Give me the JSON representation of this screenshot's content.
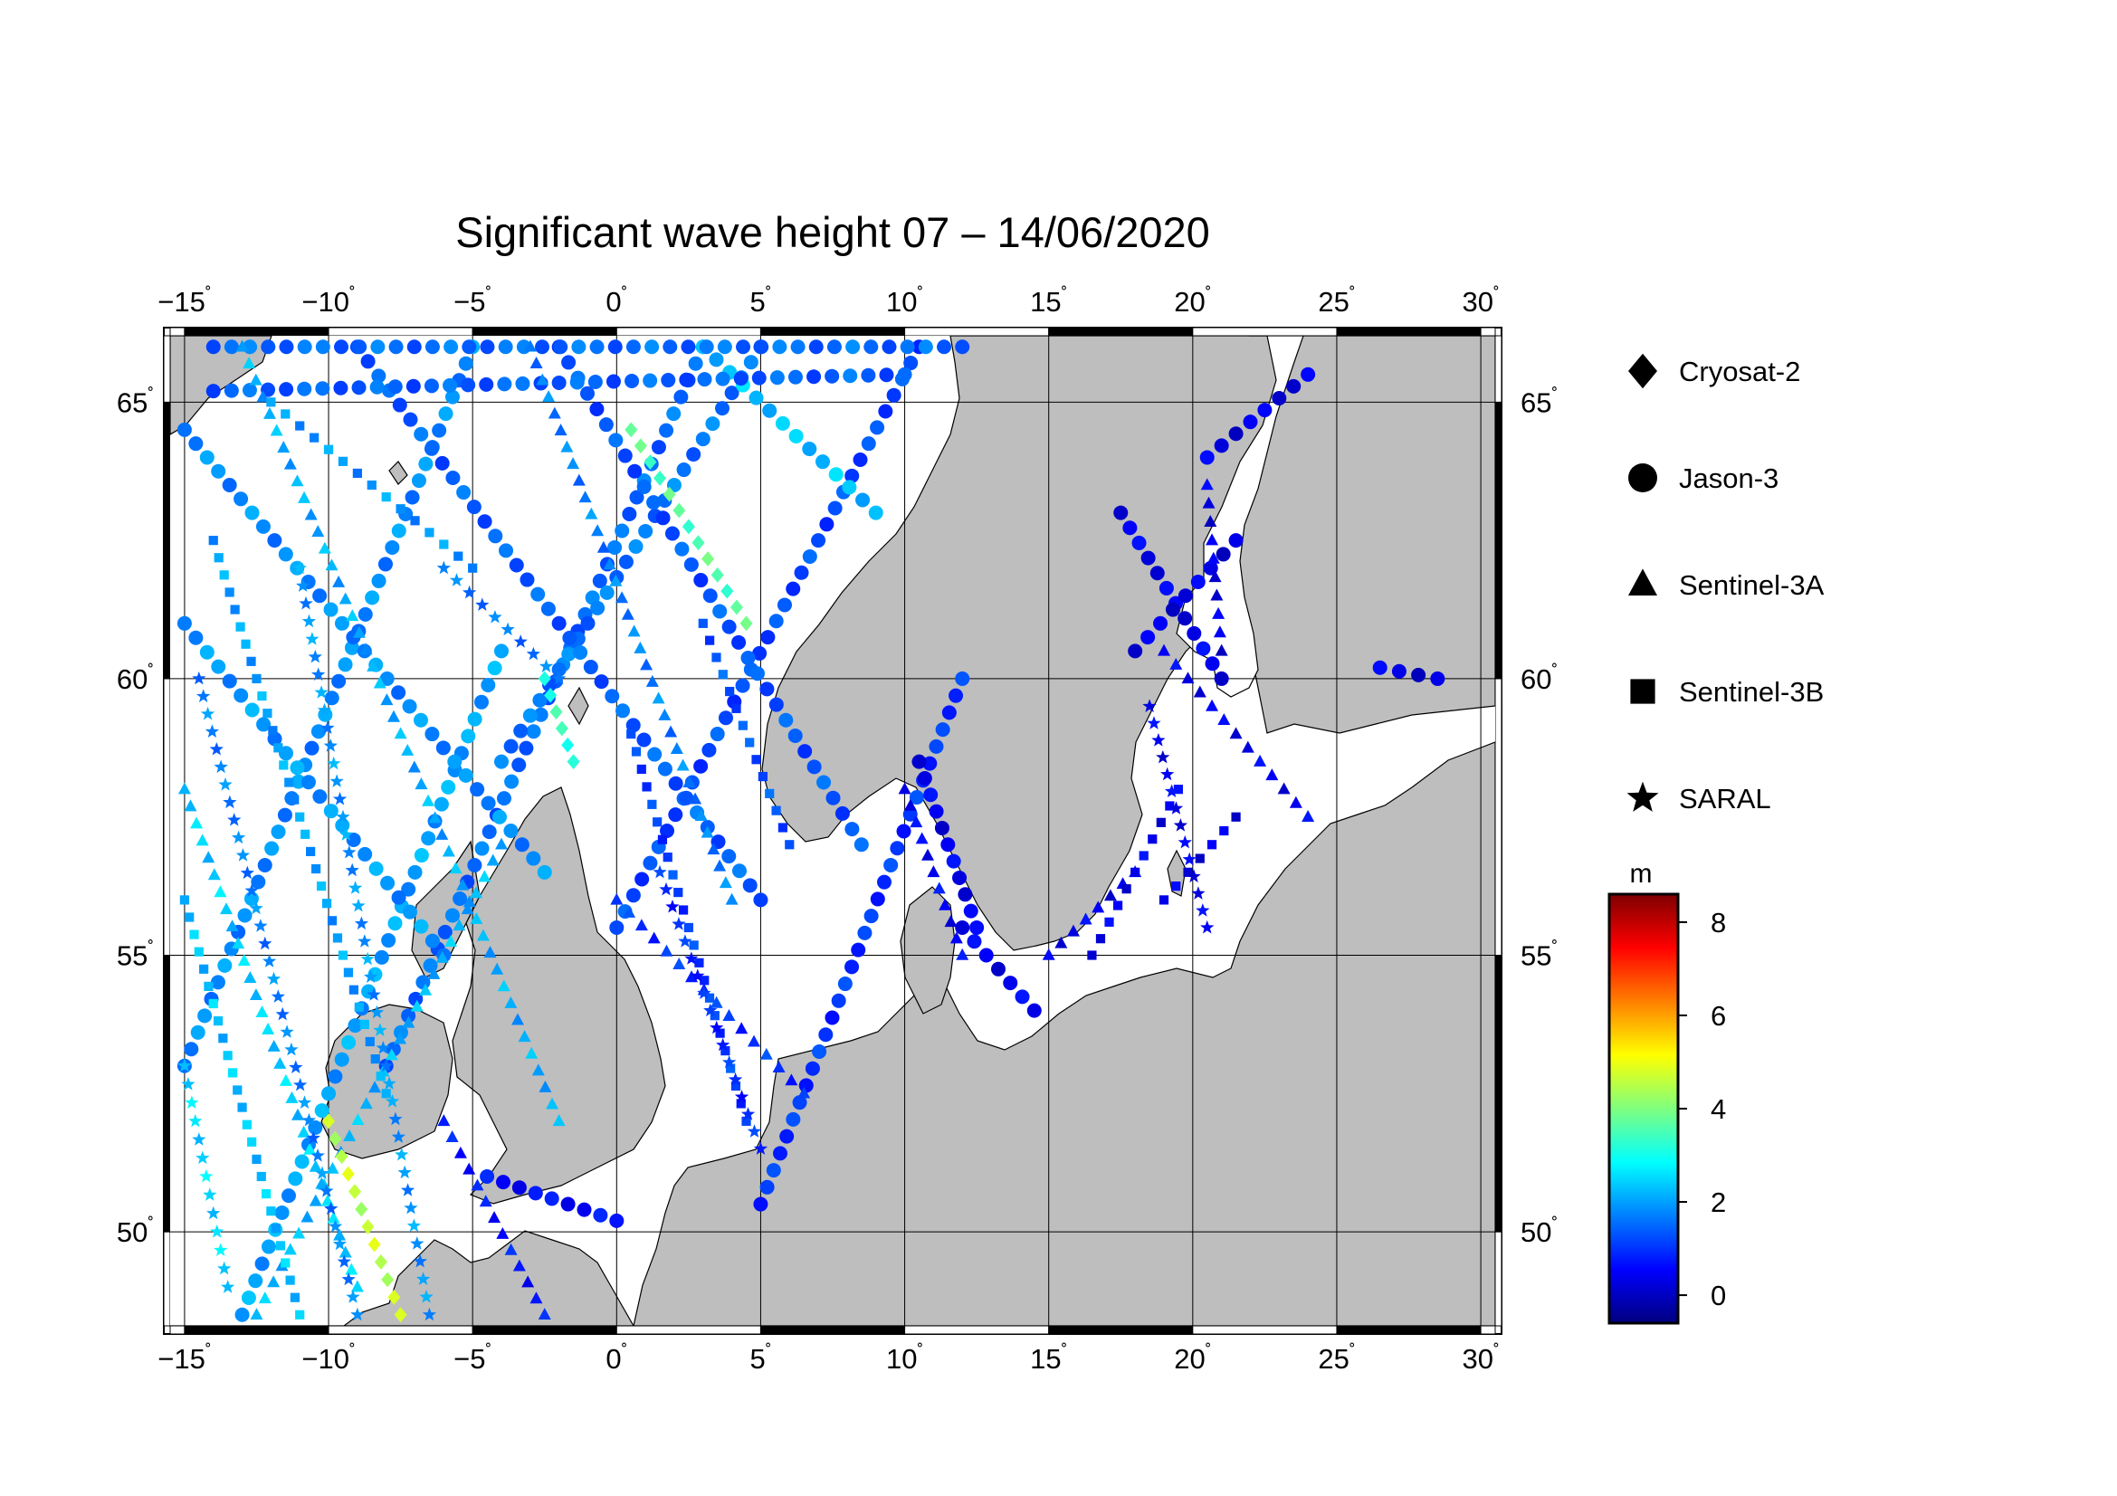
{
  "title": "Significant wave height 07 – 14/06/2020",
  "map": {
    "lon_range": [
      -15.5,
      30.5
    ],
    "lat_range": [
      48.3,
      66.2
    ],
    "gridlines": true,
    "water_color": "#ffffff",
    "land_color": "#bebebe",
    "lon_ticks": [
      {
        "value": -15,
        "label": "−15"
      },
      {
        "value": -10,
        "label": "−10"
      },
      {
        "value": -5,
        "label": "−5"
      },
      {
        "value": 0,
        "label": "0"
      },
      {
        "value": 5,
        "label": "5"
      },
      {
        "value": 10,
        "label": "10"
      },
      {
        "value": 15,
        "label": "15"
      },
      {
        "value": 20,
        "label": "20"
      },
      {
        "value": 25,
        "label": "25"
      },
      {
        "value": 30,
        "label": "30"
      }
    ],
    "lat_ticks": [
      {
        "value": 50,
        "label": "50"
      },
      {
        "value": 55,
        "label": "55"
      },
      {
        "value": 60,
        "label": "60"
      },
      {
        "value": 65,
        "label": "65"
      }
    ],
    "degree_symbol": "˚"
  },
  "legend": {
    "items": [
      {
        "label": "Cryosat-2",
        "symbol": "diamond"
      },
      {
        "label": "Jason-3",
        "symbol": "circle"
      },
      {
        "label": "Sentinel-3A",
        "symbol": "triangle"
      },
      {
        "label": "Sentinel-3B",
        "symbol": "square"
      },
      {
        "label": "SARAL",
        "symbol": "star"
      }
    ]
  },
  "colorbar": {
    "unit": "m",
    "range": [
      -0.6,
      8.6
    ],
    "ticks": [
      {
        "value": 0,
        "label": "0"
      },
      {
        "value": 2,
        "label": "2"
      },
      {
        "value": 4,
        "label": "4"
      },
      {
        "value": 6,
        "label": "6"
      },
      {
        "value": 8,
        "label": "8"
      }
    ],
    "colors": [
      "#00007f",
      "#0000ff",
      "#007fff",
      "#00ffff",
      "#7fff7f",
      "#ffff00",
      "#ff7f00",
      "#ff0000",
      "#7f0000"
    ]
  },
  "chart_data": {
    "type": "scatter",
    "title": "Significant wave height 07 – 14/06/2020",
    "x_axis": "longitude",
    "y_axis": "latitude",
    "xlim": [
      -15.5,
      30.5
    ],
    "ylim": [
      48.3,
      66.2
    ],
    "color_value_unit": "m",
    "series": [
      {
        "name": "Jason-3",
        "symbol": "circle",
        "tracks": [
          {
            "from": [
              -15.0,
              53.0
            ],
            "to": [
              -5.0,
              66.0
            ],
            "swh": 1.8
          },
          {
            "from": [
              -13.0,
              48.5
            ],
            "to": [
              -4.0,
              60.5
            ],
            "swh": 2.0
          },
          {
            "from": [
              -8.0,
              53.0
            ],
            "to": [
              3.0,
              66.0
            ],
            "swh": 1.5
          },
          {
            "from": [
              -4.0,
              58.5
            ],
            "to": [
              5.0,
              66.0
            ],
            "swh": 1.6
          },
          {
            "from": [
              0.0,
              55.5
            ],
            "to": [
              10.5,
              66.0
            ],
            "swh": 1.2
          },
          {
            "from": [
              5.0,
              50.5
            ],
            "to": [
              12.0,
              60.0
            ],
            "swh": 1.0
          },
          {
            "from": [
              -15.0,
              64.5
            ],
            "to": [
              -2.5,
              56.5
            ],
            "swh": 1.8
          },
          {
            "from": [
              -15.0,
              61.0
            ],
            "to": [
              -6.0,
              55.0
            ],
            "swh": 1.9
          },
          {
            "from": [
              -9.0,
              66.0
            ],
            "to": [
              5.0,
              56.0
            ],
            "swh": 1.4
          },
          {
            "from": [
              -2.0,
              66.0
            ],
            "to": [
              8.5,
              57.0
            ],
            "swh": 1.3
          },
          {
            "from": [
              3.0,
              66.0
            ],
            "to": [
              9.0,
              63.0
            ],
            "swh": 2.3
          },
          {
            "from": [
              -14.0,
              66.0
            ],
            "to": [
              12.0,
              66.0
            ],
            "swh": 1.5
          },
          {
            "from": [
              -14.0,
              65.2
            ],
            "to": [
              10.0,
              65.5
            ],
            "swh": 1.4
          },
          {
            "from": [
              17.5,
              63.0
            ],
            "to": [
              21.0,
              60.0
            ],
            "swh": 0.4
          },
          {
            "from": [
              18.0,
              60.5
            ],
            "to": [
              21.5,
              62.5
            ],
            "swh": 0.3
          },
          {
            "from": [
              20.5,
              64.0
            ],
            "to": [
              24.0,
              65.5
            ],
            "swh": 0.3
          },
          {
            "from": [
              10.5,
              58.5
            ],
            "to": [
              12.5,
              55.5
            ],
            "swh": 0.4
          },
          {
            "from": [
              12.0,
              55.5
            ],
            "to": [
              14.5,
              54.0
            ],
            "swh": 0.4
          },
          {
            "from": [
              -4.5,
              51.0
            ],
            "to": [
              0.0,
              50.2
            ],
            "swh": 0.6
          },
          {
            "from": [
              26.5,
              60.2
            ],
            "to": [
              28.5,
              60.0
            ],
            "swh": 0.3
          }
        ]
      },
      {
        "name": "Sentinel-3A",
        "symbol": "triangle",
        "tracks": [
          {
            "from": [
              -13.0,
              66.0
            ],
            "to": [
              -2.0,
              52.0
            ],
            "swh": 2.1
          },
          {
            "from": [
              -3.0,
              66.0
            ],
            "to": [
              4.0,
              56.0
            ],
            "swh": 1.7
          },
          {
            "from": [
              0.0,
              56.0
            ],
            "to": [
              6.5,
              52.5
            ],
            "swh": 1.0
          },
          {
            "from": [
              -12.5,
              48.5
            ],
            "to": [
              -4.0,
              57.0
            ],
            "swh": 2.2
          },
          {
            "from": [
              -15.0,
              58.0
            ],
            "to": [
              -9.0,
              49.0
            ],
            "swh": 2.4
          },
          {
            "from": [
              10.0,
              58.0
            ],
            "to": [
              12.0,
              55.0
            ],
            "swh": 0.5
          },
          {
            "from": [
              19.0,
              60.5
            ],
            "to": [
              24.0,
              57.5
            ],
            "swh": 0.4
          },
          {
            "from": [
              20.5,
              63.5
            ],
            "to": [
              21.0,
              60.5
            ],
            "swh": 0.3
          },
          {
            "from": [
              -6.0,
              52.0
            ],
            "to": [
              -2.5,
              48.5
            ],
            "swh": 0.7
          },
          {
            "from": [
              15.0,
              55.0
            ],
            "to": [
              18.0,
              56.5
            ],
            "swh": 0.4
          }
        ]
      },
      {
        "name": "Sentinel-3B",
        "symbol": "square",
        "tracks": [
          {
            "from": [
              -15.0,
              56.0
            ],
            "to": [
              -11.0,
              48.5
            ],
            "swh": 2.3
          },
          {
            "from": [
              -14.0,
              62.5
            ],
            "to": [
              -8.0,
              52.5
            ],
            "swh": 2.0
          },
          {
            "from": [
              0.5,
              59.0
            ],
            "to": [
              4.5,
              52.0
            ],
            "swh": 1.1
          },
          {
            "from": [
              3.0,
              61.0
            ],
            "to": [
              6.0,
              57.0
            ],
            "swh": 1.3
          },
          {
            "from": [
              16.5,
              55.0
            ],
            "to": [
              19.5,
              58.0
            ],
            "swh": 0.4
          },
          {
            "from": [
              19.0,
              56.0
            ],
            "to": [
              21.5,
              57.5
            ],
            "swh": 0.3
          },
          {
            "from": [
              -12.0,
              65.0
            ],
            "to": [
              -5.0,
              62.0
            ],
            "swh": 1.9
          }
        ]
      },
      {
        "name": "SARAL",
        "symbol": "star",
        "tracks": [
          {
            "from": [
              -14.5,
              60.0
            ],
            "to": [
              -9.0,
              48.5
            ],
            "swh": 1.7
          },
          {
            "from": [
              -11.0,
              62.0
            ],
            "to": [
              -6.5,
              48.5
            ],
            "swh": 1.9
          },
          {
            "from": [
              1.5,
              56.5
            ],
            "to": [
              5.0,
              51.5
            ],
            "swh": 0.9
          },
          {
            "from": [
              18.5,
              59.5
            ],
            "to": [
              20.5,
              55.5
            ],
            "swh": 0.4
          },
          {
            "from": [
              -6.0,
              62.0
            ],
            "to": [
              -2.0,
              60.0
            ],
            "swh": 1.6
          },
          {
            "from": [
              -15.0,
              53.0
            ],
            "to": [
              -13.5,
              49.0
            ],
            "swh": 2.5
          }
        ]
      },
      {
        "name": "Cryosat-2",
        "symbol": "diamond",
        "tracks": [
          {
            "from": [
              -10.0,
              52.0
            ],
            "to": [
              -7.5,
              48.5
            ],
            "swh": 4.6
          },
          {
            "from": [
              0.5,
              64.5
            ],
            "to": [
              4.5,
              61.0
            ],
            "swh": 3.6
          },
          {
            "from": [
              -2.5,
              60.0
            ],
            "to": [
              -1.5,
              58.5
            ],
            "swh": 3.3
          }
        ]
      }
    ]
  }
}
